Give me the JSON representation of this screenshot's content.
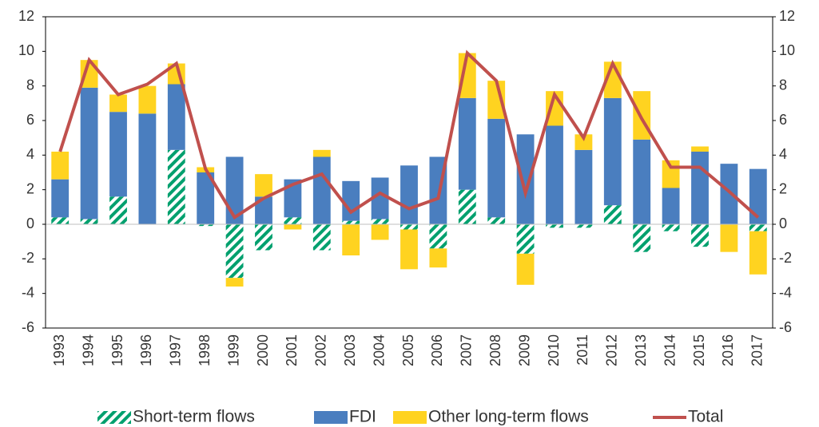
{
  "chart_data": {
    "type": "bar",
    "stacked": true,
    "categories": [
      "1993",
      "1994",
      "1995",
      "1996",
      "1997",
      "1998",
      "1999",
      "2000",
      "2001",
      "2002",
      "2003",
      "2004",
      "2005",
      "2006",
      "2007",
      "2008",
      "2009",
      "2010",
      "2011",
      "2012",
      "2013",
      "2014",
      "2015",
      "2016",
      "2017"
    ],
    "series": [
      {
        "name": "Short-term flows",
        "color": "#00a06e",
        "pattern": "hatch",
        "values": [
          0.4,
          0.3,
          1.6,
          0,
          4.3,
          -0.1,
          -3.1,
          -1.5,
          0.4,
          -1.5,
          0.2,
          0.3,
          -0.3,
          -1.4,
          2.0,
          0.4,
          -1.7,
          -0.2,
          -0.2,
          1.1,
          -1.6,
          -0.4,
          -1.3,
          0,
          -0.4
        ]
      },
      {
        "name": "FDI",
        "color": "#4a7ebf",
        "values": [
          2.2,
          7.6,
          4.9,
          6.4,
          3.8,
          3.0,
          3.9,
          1.6,
          2.2,
          3.9,
          2.3,
          2.4,
          3.4,
          3.9,
          5.3,
          5.7,
          5.2,
          5.7,
          4.3,
          6.2,
          4.9,
          2.1,
          4.2,
          3.5,
          3.2
        ]
      },
      {
        "name": "Other long-term flows",
        "color": "#ffd320",
        "values": [
          1.6,
          1.6,
          1.0,
          1.6,
          1.2,
          0.3,
          -0.5,
          1.3,
          -0.3,
          0.4,
          -1.8,
          -0.9,
          -2.3,
          -1.1,
          2.6,
          2.2,
          -1.8,
          2.0,
          0.9,
          2.1,
          2.8,
          1.6,
          0.3,
          -1.6,
          -2.5
        ]
      },
      {
        "name": "Total",
        "color": "#c0504d",
        "type": "line",
        "values": [
          4.2,
          9.5,
          7.5,
          8.1,
          9.3,
          3.2,
          0.4,
          1.5,
          2.3,
          2.9,
          0.7,
          1.8,
          0.9,
          1.5,
          9.9,
          8.3,
          1.8,
          7.5,
          5.0,
          9.3,
          6.1,
          3.3,
          3.3,
          1.9,
          0.4
        ]
      }
    ],
    "ylim": [
      -6,
      12
    ],
    "yticks": [
      -6,
      -4,
      -2,
      0,
      2,
      4,
      6,
      8,
      10,
      12
    ],
    "y2lim": [
      -6,
      12
    ],
    "y2ticks": [
      -6,
      -4,
      -2,
      0,
      2,
      4,
      6,
      8,
      10,
      12
    ],
    "legend": "bottom"
  }
}
